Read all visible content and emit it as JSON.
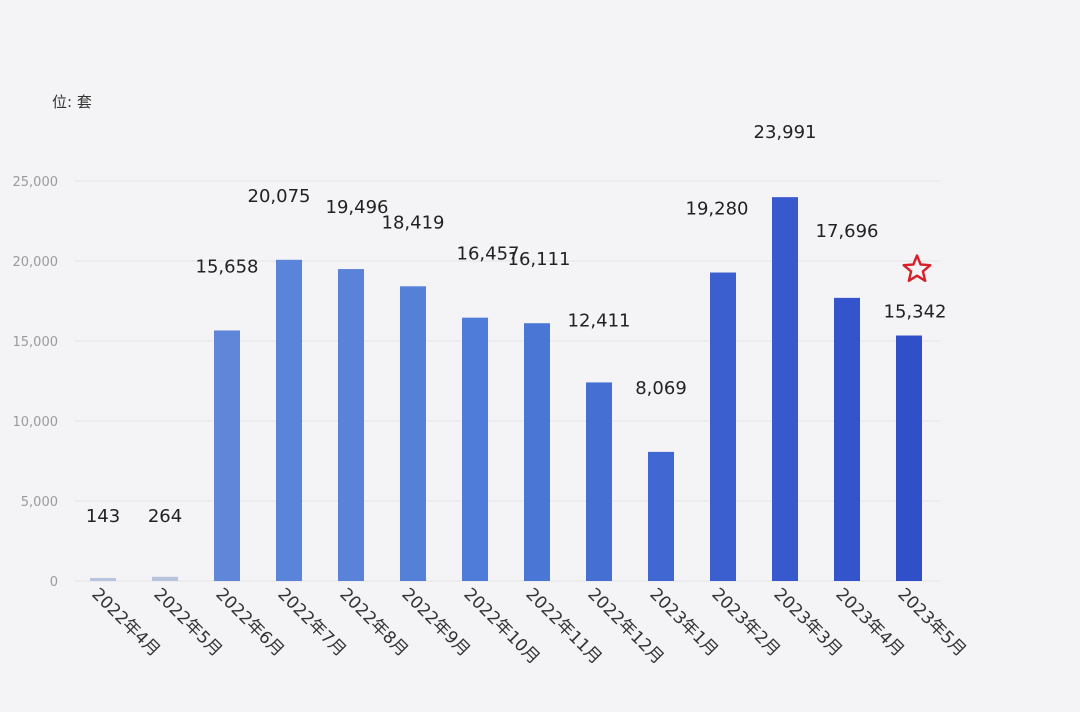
{
  "chart_data": {
    "type": "bar",
    "unit_label": "位: 套",
    "categories": [
      "2022年4月",
      "2022年5月",
      "2022年6月",
      "2022年7月",
      "2022年8月",
      "2022年9月",
      "2022年10月",
      "2022年11月",
      "2022年12月",
      "2023年1月",
      "2023年2月",
      "2023年3月",
      "2023年4月",
      "2023年5月"
    ],
    "values": [
      143,
      264,
      15658,
      20075,
      19496,
      18419,
      16457,
      16111,
      12411,
      8069,
      19280,
      23991,
      17696,
      15342
    ],
    "value_labels": [
      "143",
      "264",
      "15,658",
      "20,075",
      "19,496",
      "18,419",
      "16,457",
      "16,111",
      "12,411",
      "8,069",
      "19,280",
      "23,991",
      "17,696",
      "15,342"
    ],
    "yticks": [
      0,
      5000,
      10000,
      15000,
      20000,
      25000
    ],
    "ytick_labels": [
      "0",
      "5,000",
      "10,000",
      "15,000",
      "20,000",
      "25,000"
    ],
    "ylim": [
      0,
      25000
    ],
    "grid": true,
    "bar_colors": [
      "#b8c4de",
      "#b8c4de",
      "#5f86d8",
      "#5a84d9",
      "#5a82d8",
      "#5580d8",
      "#4f7cd8",
      "#4a76d6",
      "#466fd4",
      "#4168d2",
      "#3b5fcf",
      "#3759cd",
      "#3454cb",
      "#3050c9"
    ],
    "annotation": {
      "type": "star",
      "category_index": 13,
      "color": "#d8202a"
    }
  }
}
